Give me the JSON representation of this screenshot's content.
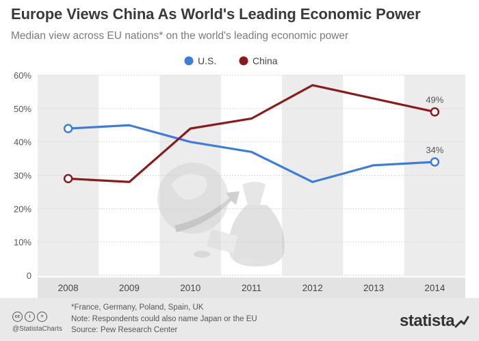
{
  "header": {
    "title": "Europe Views China As World's Leading Economic Power",
    "subtitle": "Median view across EU nations* on the world's leading economic power"
  },
  "chart_data": {
    "type": "line",
    "categories": [
      "2008",
      "2009",
      "2010",
      "2011",
      "2012",
      "2013",
      "2014"
    ],
    "series": [
      {
        "name": "U.S.",
        "values": [
          44,
          45,
          40,
          37,
          28,
          33,
          34
        ],
        "color": "#3b7dd8"
      },
      {
        "name": "China",
        "values": [
          29,
          28,
          44,
          47,
          57,
          53,
          49
        ],
        "color": "#8b1a1a"
      }
    ],
    "end_labels": [
      "49%",
      "34%"
    ],
    "ylim": [
      0,
      60
    ],
    "yticks": [
      0,
      10,
      20,
      30,
      40,
      50,
      60
    ],
    "ytick_labels": [
      "0",
      "10%",
      "20%",
      "30%",
      "40%",
      "50%",
      "60%"
    ],
    "xlabel": "",
    "ylabel": "",
    "legend_position": "top-center",
    "grid": true
  },
  "footer": {
    "notes": [
      "*France, Germany, Poland, Spain, UK",
      "Note: Respondents could also name Japan or the EU",
      "Source: Pew Research Center"
    ],
    "handle": "@StatistaCharts",
    "license_icons": [
      "cc",
      "i",
      "="
    ],
    "brand": "statista",
    "brand_icon": "statista-arrow-icon"
  }
}
